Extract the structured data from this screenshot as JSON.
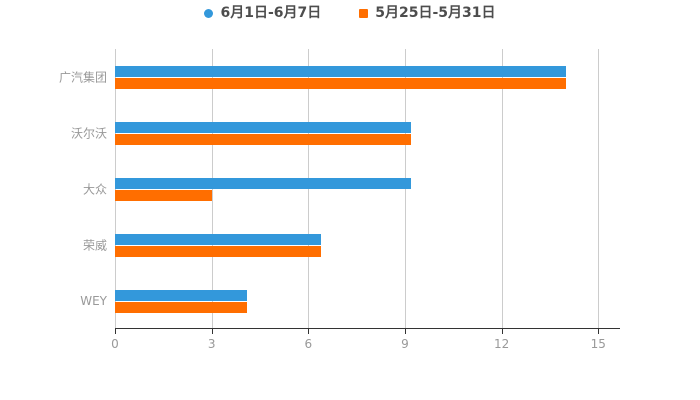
{
  "chart_data": {
    "type": "bar",
    "orientation": "horizontal",
    "title": "",
    "categories": [
      "广汽集团",
      "沃尔沃",
      "大众",
      "荣威",
      "WEY"
    ],
    "series": [
      {
        "name": "6月1日-6月7日",
        "color": "#3398DB",
        "marker": "circle",
        "values": [
          14,
          9.2,
          9.2,
          6.4,
          4.1
        ]
      },
      {
        "name": "5月25日-5月31日",
        "color": "#FF6E00",
        "marker": "square",
        "values": [
          14,
          9.2,
          3,
          6.4,
          4.1
        ]
      }
    ],
    "x_ticks": [
      0,
      3,
      6,
      9,
      12,
      15
    ],
    "xlim": [
      0,
      15.65
    ],
    "grid": true,
    "legend_position": "top",
    "colors": {
      "axis_line": "#333333",
      "tick_label": "#999999",
      "grid_line": "#cccccc",
      "legend_text": "#4d4d4d",
      "background": "#ffffff"
    }
  }
}
